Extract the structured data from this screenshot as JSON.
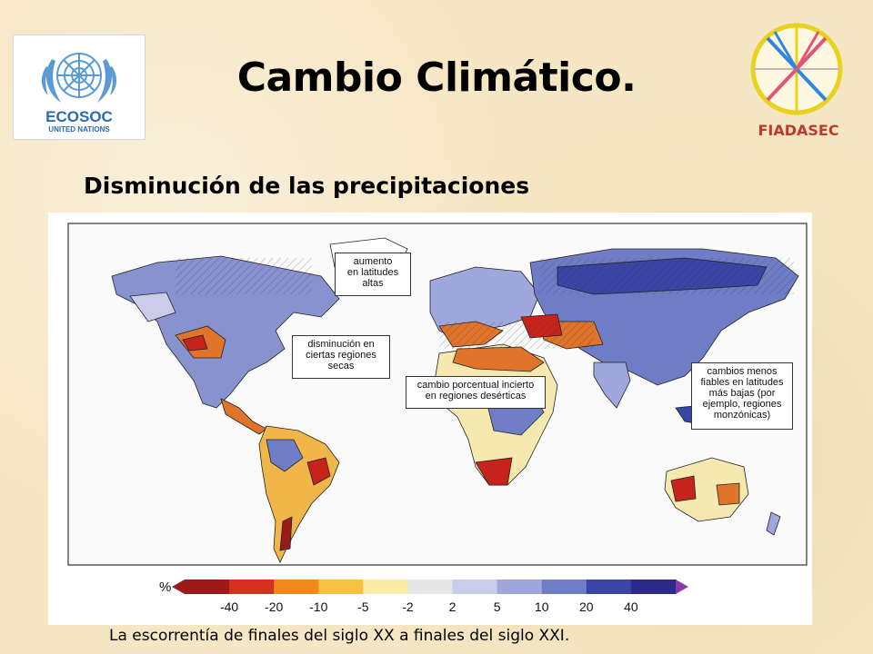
{
  "header": {
    "title": "Cambio Climático.",
    "subtitle": "Disminución de las precipitaciones",
    "left_logo": {
      "name": "ECOSOC",
      "org": "UNITED NATIONS"
    },
    "right_logo": {
      "name": "FIADASEC"
    }
  },
  "map": {
    "callouts": [
      {
        "id": "high-lat",
        "text": "aumento\nen latitudes\naltas"
      },
      {
        "id": "dry",
        "text": "disminución en\nciertas regiones\nsecas"
      },
      {
        "id": "desert",
        "text": "cambio porcentual incierto\nen regiones desérticas"
      },
      {
        "id": "low-lat",
        "text": "cambios menos\nfiables en latitudes\nmás bajas (por\nejemplo, regiones\nmonzónicas)"
      }
    ],
    "legend": {
      "unit": "%",
      "labels": [
        "-40",
        "-20",
        "-10",
        "-5",
        "-2",
        "2",
        "5",
        "10",
        "20",
        "40"
      ],
      "colors": [
        "#9b1b1b",
        "#d6301f",
        "#f08a1e",
        "#f7c244",
        "#fbeaa8",
        "#e6e6e6",
        "#c9cdea",
        "#9fa7dc",
        "#6f7dc7",
        "#3a45a6",
        "#2b2a8a"
      ]
    }
  },
  "caption": "La escorrentía de finales del siglo XX a finales del siglo XXI."
}
